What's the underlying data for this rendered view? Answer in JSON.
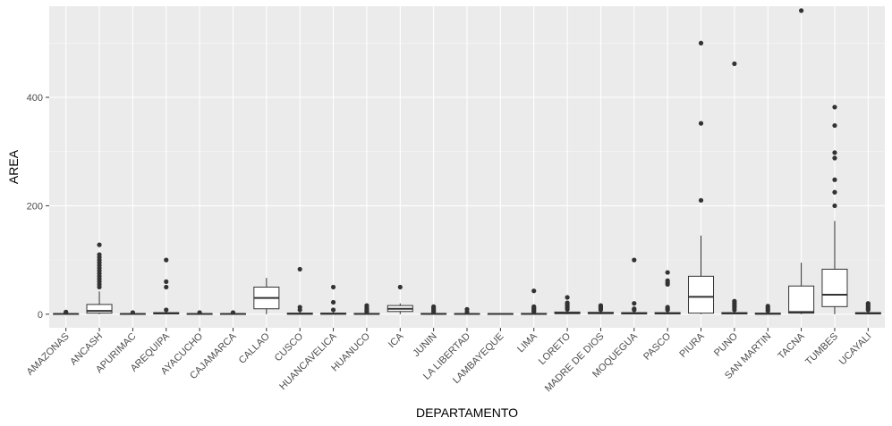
{
  "chart_data": {
    "type": "boxplot",
    "xlabel": "DEPARTAMENTO",
    "ylabel": "AREA",
    "ylim": [
      -25,
      568
    ],
    "yticks": [
      0,
      200,
      400
    ],
    "grid": true,
    "colors": {
      "panel": "#ebebeb",
      "grid_major": "#ffffff",
      "grid_minor": "#f5f5f5",
      "box_fill": "#ffffff",
      "box_line": "#333333",
      "tick_text": "#4d4d4d",
      "axis_title": "#000000"
    },
    "categories": [
      "AMAZONAS",
      "ANCASH",
      "APURIMAC",
      "AREQUIPA",
      "AYACUCHO",
      "CAJAMARCA",
      "CALLAO",
      "CUSCO",
      "HUANCAVELICA",
      "HUANUCO",
      "ICA",
      "JUNIN",
      "LA LIBERTAD",
      "LAMBAYEQUE",
      "LIMA",
      "LORETO",
      "MADRE DE DIOS",
      "MOQUEGUA",
      "PASCO",
      "PIURA",
      "PUNO",
      "SAN MARTIN",
      "TACNA",
      "TUMBES",
      "UCAYALI"
    ],
    "boxes": [
      {
        "q1": 0,
        "median": 0.5,
        "q3": 1,
        "lower": 0,
        "upper": 2,
        "outliers": [
          3,
          4
        ]
      },
      {
        "q1": 2,
        "median": 6,
        "q3": 18,
        "lower": 0,
        "upper": 42,
        "outliers": [
          50,
          55,
          60,
          65,
          70,
          75,
          80,
          85,
          90,
          95,
          100,
          105,
          110,
          128
        ]
      },
      {
        "q1": 0,
        "median": 0.5,
        "q3": 1,
        "lower": 0,
        "upper": 2,
        "outliers": [
          3
        ]
      },
      {
        "q1": 0.5,
        "median": 1.5,
        "q3": 3,
        "lower": 0,
        "upper": 7,
        "outliers": [
          8,
          50,
          60,
          100
        ]
      },
      {
        "q1": 0,
        "median": 0.5,
        "q3": 1,
        "lower": 0,
        "upper": 2,
        "outliers": [
          3
        ]
      },
      {
        "q1": 0,
        "median": 0.5,
        "q3": 1,
        "lower": 0,
        "upper": 2,
        "outliers": [
          3
        ]
      },
      {
        "q1": 10,
        "median": 30,
        "q3": 50,
        "lower": 0,
        "upper": 67,
        "outliers": []
      },
      {
        "q1": 0,
        "median": 1,
        "q3": 2,
        "lower": 0,
        "upper": 4,
        "outliers": [
          8,
          13,
          83
        ]
      },
      {
        "q1": 0,
        "median": 1,
        "q3": 2,
        "lower": 0,
        "upper": 4,
        "outliers": [
          8,
          22,
          50
        ]
      },
      {
        "q1": 0,
        "median": 0.5,
        "q3": 1.5,
        "lower": 0,
        "upper": 3,
        "outliers": [
          4,
          6,
          9,
          12,
          16
        ]
      },
      {
        "q1": 5,
        "median": 10,
        "q3": 16,
        "lower": 0,
        "upper": 20,
        "outliers": [
          50
        ]
      },
      {
        "q1": 0,
        "median": 0.5,
        "q3": 1.5,
        "lower": 0,
        "upper": 3,
        "outliers": [
          4,
          6,
          8,
          11,
          14
        ]
      },
      {
        "q1": 0,
        "median": 0.5,
        "q3": 1,
        "lower": 0,
        "upper": 2,
        "outliers": [
          4,
          9
        ]
      },
      {
        "q1": 0,
        "median": 0.5,
        "q3": 1,
        "lower": 0,
        "upper": 2,
        "outliers": []
      },
      {
        "q1": 0,
        "median": 0.5,
        "q3": 1.5,
        "lower": 0,
        "upper": 3,
        "outliers": [
          4,
          6,
          8,
          10,
          12,
          14,
          43
        ]
      },
      {
        "q1": 1,
        "median": 2,
        "q3": 4,
        "lower": 0,
        "upper": 7,
        "outliers": [
          9,
          12,
          15,
          18,
          21,
          31
        ]
      },
      {
        "q1": 1,
        "median": 2,
        "q3": 3.5,
        "lower": 0,
        "upper": 7,
        "outliers": [
          8,
          10,
          12,
          14,
          16
        ]
      },
      {
        "q1": 0.5,
        "median": 1.5,
        "q3": 3,
        "lower": 0,
        "upper": 6,
        "outliers": [
          8,
          10,
          20,
          100
        ]
      },
      {
        "q1": 0.5,
        "median": 1.5,
        "q3": 3,
        "lower": 0,
        "upper": 6,
        "outliers": [
          8,
          10,
          13,
          55,
          58,
          62,
          77
        ]
      },
      {
        "q1": 2,
        "median": 32,
        "q3": 70,
        "lower": 0,
        "upper": 145,
        "outliers": [
          210,
          352,
          500
        ]
      },
      {
        "q1": 0.5,
        "median": 1.5,
        "q3": 3,
        "lower": 0,
        "upper": 6,
        "outliers": [
          8,
          12,
          15,
          18,
          21,
          24,
          462
        ]
      },
      {
        "q1": 0,
        "median": 1,
        "q3": 2,
        "lower": 0,
        "upper": 4,
        "outliers": [
          6,
          9,
          12,
          15
        ]
      },
      {
        "q1": 2,
        "median": 4,
        "q3": 52,
        "lower": 0,
        "upper": 95,
        "outliers": [
          560
        ]
      },
      {
        "q1": 14,
        "median": 36,
        "q3": 83,
        "lower": 0,
        "upper": 172,
        "outliers": [
          200,
          225,
          248,
          288,
          298,
          348,
          382
        ]
      },
      {
        "q1": 0.5,
        "median": 1.5,
        "q3": 3,
        "lower": 0,
        "upper": 6,
        "outliers": [
          8,
          11,
          14,
          17,
          20
        ]
      }
    ]
  }
}
